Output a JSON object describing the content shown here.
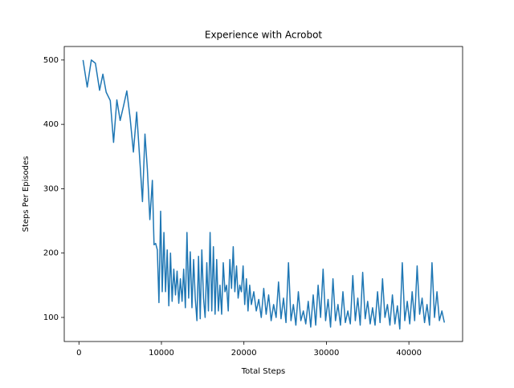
{
  "chart_data": {
    "type": "line",
    "title": "Experience with Acrobot",
    "x_label": "Total Steps",
    "y_label": "Steps Per Episodes",
    "xlim": [
      -1780,
      46510
    ],
    "ylim": [
      62.6,
      521
    ],
    "xticks": [
      0,
      10000,
      20000,
      30000,
      40000
    ],
    "yticks": [
      100,
      200,
      300,
      400,
      500
    ],
    "series": [
      {
        "color": "#1f77b4",
        "x": [
          500,
          1000,
          1500,
          2000,
          2500,
          2900,
          3300,
          3800,
          4200,
          4600,
          5000,
          5400,
          5800,
          6200,
          6600,
          7000,
          7400,
          7700,
          8000,
          8300,
          8600,
          8900,
          9100,
          9300,
          9500,
          9700,
          9900,
          10100,
          10300,
          10500,
          10700,
          10900,
          11100,
          11300,
          11500,
          11700,
          11900,
          12100,
          12300,
          12500,
          12700,
          12900,
          13100,
          13300,
          13500,
          13700,
          13900,
          14100,
          14300,
          14500,
          14700,
          14900,
          15100,
          15300,
          15500,
          15700,
          15900,
          16100,
          16300,
          16500,
          16700,
          16900,
          17100,
          17300,
          17500,
          17700,
          17900,
          18100,
          18300,
          18500,
          18700,
          18900,
          19100,
          19300,
          19500,
          19700,
          19900,
          20100,
          20300,
          20500,
          20700,
          20900,
          21200,
          21500,
          21800,
          22100,
          22400,
          22700,
          23000,
          23300,
          23600,
          23900,
          24200,
          24500,
          24800,
          25100,
          25400,
          25700,
          26000,
          26300,
          26600,
          26900,
          27200,
          27500,
          27800,
          28100,
          28400,
          28700,
          29000,
          29300,
          29600,
          29900,
          30200,
          30500,
          30800,
          31100,
          31400,
          31700,
          32000,
          32300,
          32600,
          32900,
          33200,
          33500,
          33800,
          34100,
          34400,
          34700,
          35000,
          35300,
          35600,
          35900,
          36200,
          36500,
          36800,
          37100,
          37400,
          37700,
          38000,
          38300,
          38600,
          38900,
          39200,
          39500,
          39800,
          40100,
          40400,
          40700,
          41000,
          41300,
          41600,
          41900,
          42200,
          42500,
          42800,
          43100,
          43400,
          43700,
          44000,
          44300
        ],
        "values": [
          500,
          458,
          500,
          495,
          453,
          478,
          450,
          437,
          372,
          438,
          406,
          428,
          452,
          410,
          357,
          419,
          340,
          280,
          385,
          330,
          252,
          313,
          213,
          215,
          205,
          123,
          265,
          140,
          232,
          140,
          205,
          118,
          200,
          125,
          175,
          135,
          172,
          122,
          160,
          125,
          175,
          115,
          232,
          130,
          202,
          115,
          190,
          130,
          95,
          195,
          98,
          205,
          130,
          100,
          185,
          110,
          232,
          110,
          210,
          105,
          190,
          110,
          150,
          105,
          185,
          140,
          150,
          110,
          190,
          145,
          210,
          140,
          180,
          130,
          150,
          140,
          180,
          120,
          160,
          110,
          150,
          120,
          140,
          110,
          128,
          100,
          145,
          105,
          135,
          95,
          120,
          100,
          155,
          98,
          130,
          92,
          185,
          95,
          120,
          88,
          140,
          95,
          110,
          90,
          125,
          85,
          135,
          88,
          150,
          100,
          175,
          95,
          128,
          85,
          160,
          95,
          120,
          88,
          140,
          92,
          110,
          90,
          165,
          95,
          130,
          88,
          170,
          98,
          125,
          90,
          115,
          88,
          140,
          92,
          160,
          100,
          120,
          88,
          135,
          90,
          118,
          82,
          185,
          95,
          125,
          90,
          140,
          95,
          180,
          105,
          130,
          92,
          120,
          88,
          185,
          100,
          140,
          95,
          110,
          92
        ]
      }
    ]
  }
}
